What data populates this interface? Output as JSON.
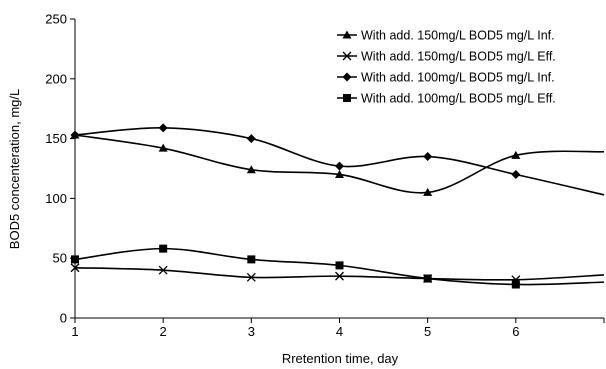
{
  "chart_data": {
    "type": "line",
    "title": "",
    "xlabel": "Rretention time, day",
    "ylabel": "BOD5 concenteration, mg/L",
    "x": [
      1,
      2,
      3,
      4,
      5,
      6,
      7
    ],
    "x_tick_labels": [
      "1",
      "2",
      "3",
      "4",
      "5",
      "6"
    ],
    "y_tick_labels": [
      "0",
      "50",
      "100",
      "150",
      "200",
      "250"
    ],
    "xlim": [
      1,
      7
    ],
    "ylim": [
      0,
      250
    ],
    "grid": false,
    "legend_position": "top-right",
    "series": [
      {
        "name": "With add. 150mg/L BOD5 mg/L Inf.",
        "marker": "triangle",
        "values": [
          153,
          142,
          124,
          120,
          105,
          136,
          139
        ]
      },
      {
        "name": "With add. 150mg/L BOD5 mg/L Eff.",
        "marker": "x",
        "values": [
          42,
          40,
          34,
          35,
          33,
          32,
          36
        ]
      },
      {
        "name": "With add. 100mg/L BOD5 mg/L Inf.",
        "marker": "diamond",
        "values": [
          153,
          159,
          150,
          127,
          135,
          120,
          103
        ]
      },
      {
        "name": "With add. 100mg/L BOD5 mg/L Eff.",
        "marker": "square",
        "values": [
          49,
          58,
          49,
          44,
          33,
          28,
          30
        ]
      }
    ],
    "colors": {
      "line": "#000000",
      "axis": "#000000",
      "background": "#ffffff"
    }
  }
}
